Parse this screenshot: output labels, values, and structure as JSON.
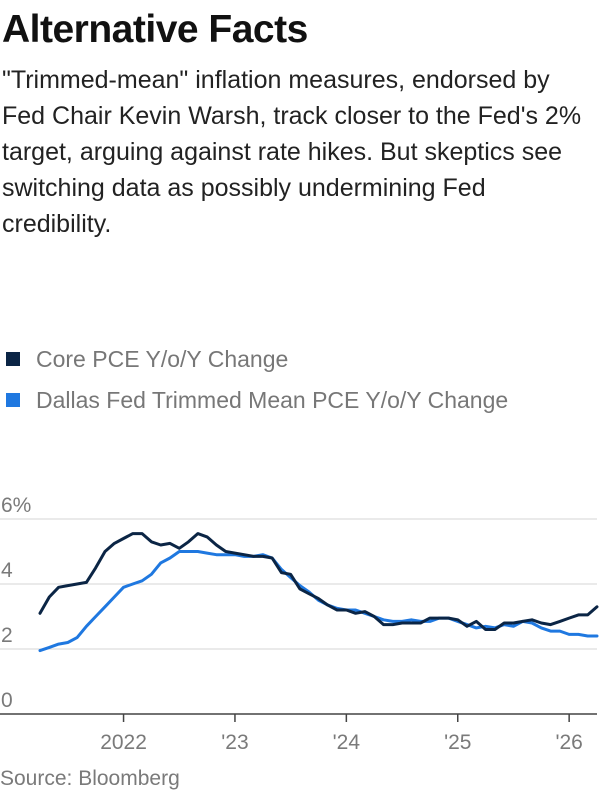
{
  "title": "Alternative Facts",
  "subtitle": "\"Trimmed-mean\" inflation measures, endorsed by Fed Chair Kevin Warsh, track closer to the Fed's 2% target, arguing against rate hikes. But skeptics see switching data as possibly undermining Fed credibility.",
  "source": "Source: Bloomberg",
  "chart_data": {
    "type": "line",
    "title": "Alternative Facts",
    "xlabel": "",
    "ylabel": "",
    "ylim": [
      0,
      6
    ],
    "xlim": [
      "2021-04",
      "2026-04"
    ],
    "grid": true,
    "legend": "top-left",
    "y_ticks": [
      {
        "value": 6,
        "label": "6%"
      },
      {
        "value": 4,
        "label": "4"
      },
      {
        "value": 2,
        "label": "2"
      },
      {
        "value": 0,
        "label": "0"
      }
    ],
    "x_ticks": [
      {
        "value": "2022-01",
        "label": "2022"
      },
      {
        "value": "2023-01",
        "label": "'23"
      },
      {
        "value": "2024-01",
        "label": "'24"
      },
      {
        "value": "2025-01",
        "label": "'25"
      },
      {
        "value": "2026-01",
        "label": "'26"
      }
    ],
    "series": [
      {
        "name": "Core PCE Y/o/Y Change",
        "color": "#0b2545",
        "x": [
          "2021-04",
          "2021-05",
          "2021-06",
          "2021-07",
          "2021-08",
          "2021-09",
          "2021-10",
          "2021-11",
          "2021-12",
          "2022-01",
          "2022-02",
          "2022-03",
          "2022-04",
          "2022-05",
          "2022-06",
          "2022-07",
          "2022-08",
          "2022-09",
          "2022-10",
          "2022-11",
          "2022-12",
          "2023-01",
          "2023-02",
          "2023-03",
          "2023-04",
          "2023-05",
          "2023-06",
          "2023-07",
          "2023-08",
          "2023-09",
          "2023-10",
          "2023-11",
          "2023-12",
          "2024-01",
          "2024-02",
          "2024-03",
          "2024-04",
          "2024-05",
          "2024-06",
          "2024-07",
          "2024-08",
          "2024-09",
          "2024-10",
          "2024-11",
          "2024-12",
          "2025-01",
          "2025-02",
          "2025-03",
          "2025-04",
          "2025-05",
          "2025-06",
          "2025-07",
          "2025-08",
          "2025-09",
          "2025-10",
          "2025-11",
          "2025-12",
          "2026-01",
          "2026-02",
          "2026-03",
          "2026-04"
        ],
        "values": [
          3.1,
          3.6,
          3.9,
          3.95,
          4.0,
          4.05,
          4.5,
          5.0,
          5.25,
          5.4,
          5.55,
          5.55,
          5.3,
          5.2,
          5.25,
          5.1,
          5.3,
          5.55,
          5.45,
          5.2,
          5.0,
          4.95,
          4.9,
          4.85,
          4.85,
          4.8,
          4.35,
          4.3,
          3.85,
          3.7,
          3.55,
          3.35,
          3.2,
          3.2,
          3.1,
          3.15,
          3.0,
          2.75,
          2.75,
          2.8,
          2.8,
          2.8,
          2.95,
          2.95,
          2.95,
          2.9,
          2.7,
          2.85,
          2.6,
          2.6,
          2.8,
          2.8,
          2.85,
          2.9,
          2.8,
          2.75,
          2.85,
          2.95,
          3.05,
          3.05,
          3.3
        ]
      },
      {
        "name": "Dallas Fed Trimmed Mean PCE Y/o/Y Change",
        "color": "#1f78e0",
        "x": [
          "2021-04",
          "2021-05",
          "2021-06",
          "2021-07",
          "2021-08",
          "2021-09",
          "2021-10",
          "2021-11",
          "2021-12",
          "2022-01",
          "2022-02",
          "2022-03",
          "2022-04",
          "2022-05",
          "2022-06",
          "2022-07",
          "2022-08",
          "2022-09",
          "2022-10",
          "2022-11",
          "2022-12",
          "2023-01",
          "2023-02",
          "2023-03",
          "2023-04",
          "2023-05",
          "2023-06",
          "2023-07",
          "2023-08",
          "2023-09",
          "2023-10",
          "2023-11",
          "2023-12",
          "2024-01",
          "2024-02",
          "2024-03",
          "2024-04",
          "2024-05",
          "2024-06",
          "2024-07",
          "2024-08",
          "2024-09",
          "2024-10",
          "2024-11",
          "2024-12",
          "2025-01",
          "2025-02",
          "2025-03",
          "2025-04",
          "2025-05",
          "2025-06",
          "2025-07",
          "2025-08",
          "2025-09",
          "2025-10",
          "2025-11",
          "2025-12",
          "2026-01",
          "2026-02",
          "2026-03",
          "2026-04"
        ],
        "values": [
          1.95,
          2.05,
          2.15,
          2.2,
          2.35,
          2.7,
          3.0,
          3.3,
          3.6,
          3.9,
          4.0,
          4.1,
          4.3,
          4.65,
          4.8,
          5.0,
          5.0,
          5.0,
          4.95,
          4.9,
          4.9,
          4.9,
          4.85,
          4.85,
          4.9,
          4.8,
          4.45,
          4.2,
          3.95,
          3.75,
          3.5,
          3.35,
          3.25,
          3.2,
          3.2,
          3.1,
          3.0,
          2.9,
          2.85,
          2.85,
          2.9,
          2.85,
          2.85,
          2.95,
          2.95,
          2.85,
          2.75,
          2.65,
          2.7,
          2.65,
          2.75,
          2.7,
          2.85,
          2.8,
          2.65,
          2.55,
          2.55,
          2.45,
          2.45,
          2.4,
          2.4
        ]
      }
    ]
  }
}
